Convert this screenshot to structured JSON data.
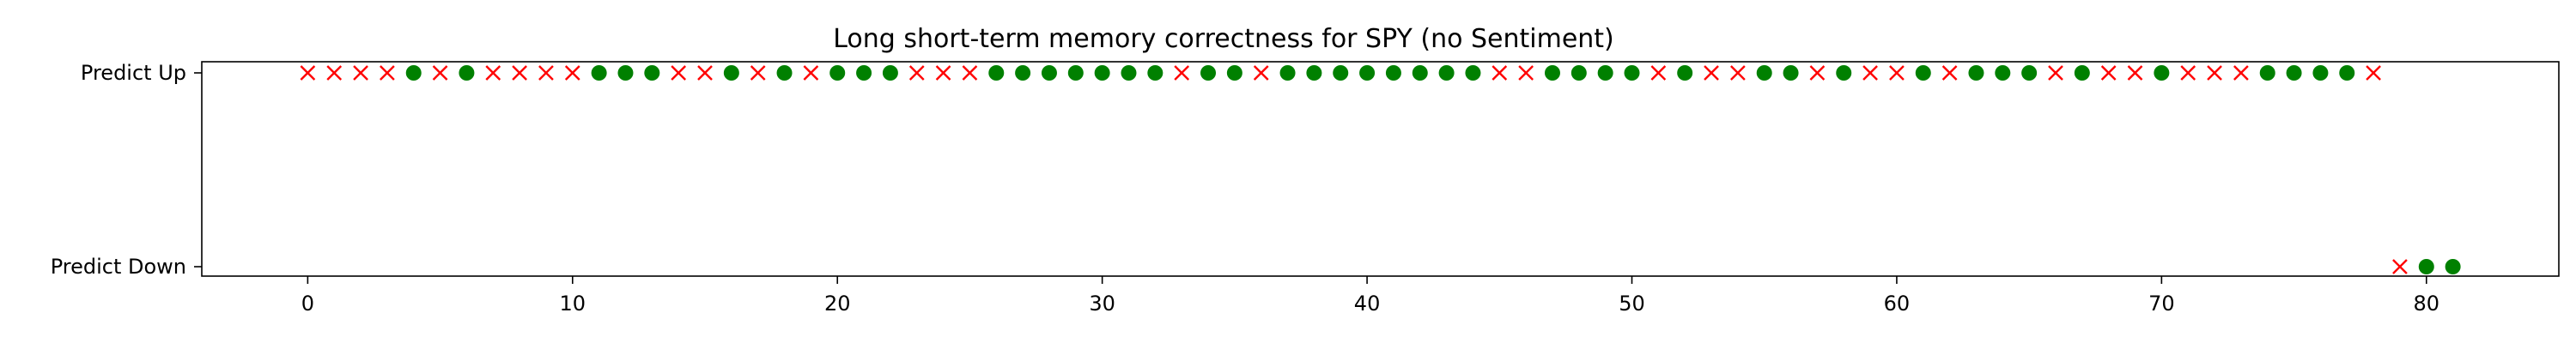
{
  "chart_data": {
    "type": "scatter",
    "title": "Long short-term memory correctness for SPY (no Sentiment)",
    "xlabel": "",
    "ylabel": "",
    "xlim": [
      -4,
      85
    ],
    "xticks": [
      0,
      10,
      20,
      30,
      40,
      50,
      60,
      70,
      80
    ],
    "yticks": [
      {
        "value": 1,
        "label": "Predict Up"
      },
      {
        "value": 0,
        "label": "Predict Down"
      }
    ],
    "grid": false,
    "marker_colors": {
      "correct": "#008000",
      "incorrect": "#ff0000"
    },
    "marker_shapes": {
      "correct": "circle",
      "incorrect": "x"
    },
    "points": [
      {
        "x": 0,
        "prediction": 1,
        "correct": false
      },
      {
        "x": 1,
        "prediction": 1,
        "correct": false
      },
      {
        "x": 2,
        "prediction": 1,
        "correct": false
      },
      {
        "x": 3,
        "prediction": 1,
        "correct": false
      },
      {
        "x": 4,
        "prediction": 1,
        "correct": true
      },
      {
        "x": 5,
        "prediction": 1,
        "correct": false
      },
      {
        "x": 6,
        "prediction": 1,
        "correct": true
      },
      {
        "x": 7,
        "prediction": 1,
        "correct": false
      },
      {
        "x": 8,
        "prediction": 1,
        "correct": false
      },
      {
        "x": 9,
        "prediction": 1,
        "correct": false
      },
      {
        "x": 10,
        "prediction": 1,
        "correct": false
      },
      {
        "x": 11,
        "prediction": 1,
        "correct": true
      },
      {
        "x": 12,
        "prediction": 1,
        "correct": true
      },
      {
        "x": 13,
        "prediction": 1,
        "correct": true
      },
      {
        "x": 14,
        "prediction": 1,
        "correct": false
      },
      {
        "x": 15,
        "prediction": 1,
        "correct": false
      },
      {
        "x": 16,
        "prediction": 1,
        "correct": true
      },
      {
        "x": 17,
        "prediction": 1,
        "correct": false
      },
      {
        "x": 18,
        "prediction": 1,
        "correct": true
      },
      {
        "x": 19,
        "prediction": 1,
        "correct": false
      },
      {
        "x": 20,
        "prediction": 1,
        "correct": true
      },
      {
        "x": 21,
        "prediction": 1,
        "correct": true
      },
      {
        "x": 22,
        "prediction": 1,
        "correct": true
      },
      {
        "x": 23,
        "prediction": 1,
        "correct": false
      },
      {
        "x": 24,
        "prediction": 1,
        "correct": false
      },
      {
        "x": 25,
        "prediction": 1,
        "correct": false
      },
      {
        "x": 26,
        "prediction": 1,
        "correct": true
      },
      {
        "x": 27,
        "prediction": 1,
        "correct": true
      },
      {
        "x": 28,
        "prediction": 1,
        "correct": true
      },
      {
        "x": 29,
        "prediction": 1,
        "correct": true
      },
      {
        "x": 30,
        "prediction": 1,
        "correct": true
      },
      {
        "x": 31,
        "prediction": 1,
        "correct": true
      },
      {
        "x": 32,
        "prediction": 1,
        "correct": true
      },
      {
        "x": 33,
        "prediction": 1,
        "correct": false
      },
      {
        "x": 34,
        "prediction": 1,
        "correct": true
      },
      {
        "x": 35,
        "prediction": 1,
        "correct": true
      },
      {
        "x": 36,
        "prediction": 1,
        "correct": false
      },
      {
        "x": 37,
        "prediction": 1,
        "correct": true
      },
      {
        "x": 38,
        "prediction": 1,
        "correct": true
      },
      {
        "x": 39,
        "prediction": 1,
        "correct": true
      },
      {
        "x": 40,
        "prediction": 1,
        "correct": true
      },
      {
        "x": 41,
        "prediction": 1,
        "correct": true
      },
      {
        "x": 42,
        "prediction": 1,
        "correct": true
      },
      {
        "x": 43,
        "prediction": 1,
        "correct": true
      },
      {
        "x": 44,
        "prediction": 1,
        "correct": true
      },
      {
        "x": 45,
        "prediction": 1,
        "correct": false
      },
      {
        "x": 46,
        "prediction": 1,
        "correct": false
      },
      {
        "x": 47,
        "prediction": 1,
        "correct": true
      },
      {
        "x": 48,
        "prediction": 1,
        "correct": true
      },
      {
        "x": 49,
        "prediction": 1,
        "correct": true
      },
      {
        "x": 50,
        "prediction": 1,
        "correct": true
      },
      {
        "x": 51,
        "prediction": 1,
        "correct": false
      },
      {
        "x": 52,
        "prediction": 1,
        "correct": true
      },
      {
        "x": 53,
        "prediction": 1,
        "correct": false
      },
      {
        "x": 54,
        "prediction": 1,
        "correct": false
      },
      {
        "x": 55,
        "prediction": 1,
        "correct": true
      },
      {
        "x": 56,
        "prediction": 1,
        "correct": true
      },
      {
        "x": 57,
        "prediction": 1,
        "correct": false
      },
      {
        "x": 58,
        "prediction": 1,
        "correct": true
      },
      {
        "x": 59,
        "prediction": 1,
        "correct": false
      },
      {
        "x": 60,
        "prediction": 1,
        "correct": false
      },
      {
        "x": 61,
        "prediction": 1,
        "correct": true
      },
      {
        "x": 62,
        "prediction": 1,
        "correct": false
      },
      {
        "x": 63,
        "prediction": 1,
        "correct": true
      },
      {
        "x": 64,
        "prediction": 1,
        "correct": true
      },
      {
        "x": 65,
        "prediction": 1,
        "correct": true
      },
      {
        "x": 66,
        "prediction": 1,
        "correct": false
      },
      {
        "x": 67,
        "prediction": 1,
        "correct": true
      },
      {
        "x": 68,
        "prediction": 1,
        "correct": false
      },
      {
        "x": 69,
        "prediction": 1,
        "correct": false
      },
      {
        "x": 70,
        "prediction": 1,
        "correct": true
      },
      {
        "x": 71,
        "prediction": 1,
        "correct": false
      },
      {
        "x": 72,
        "prediction": 1,
        "correct": false
      },
      {
        "x": 73,
        "prediction": 1,
        "correct": false
      },
      {
        "x": 74,
        "prediction": 1,
        "correct": true
      },
      {
        "x": 75,
        "prediction": 1,
        "correct": true
      },
      {
        "x": 76,
        "prediction": 1,
        "correct": true
      },
      {
        "x": 77,
        "prediction": 1,
        "correct": true
      },
      {
        "x": 78,
        "prediction": 1,
        "correct": false
      },
      {
        "x": 79,
        "prediction": 0,
        "correct": false
      },
      {
        "x": 80,
        "prediction": 0,
        "correct": true
      },
      {
        "x": 81,
        "prediction": 0,
        "correct": true
      }
    ]
  }
}
